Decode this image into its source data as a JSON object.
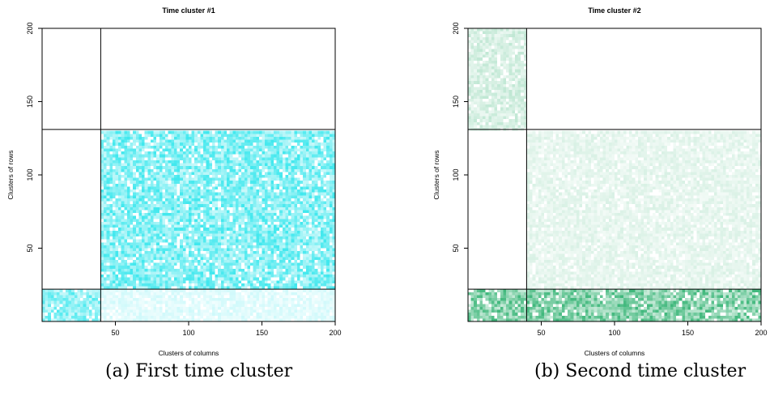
{
  "figure": {
    "captions": [
      "(a) First time cluster",
      "(b) Second time cluster"
    ]
  },
  "chart_data": [
    {
      "type": "heatmap",
      "title": "Time cluster #1",
      "xlabel": "Clusters of columns",
      "ylabel": "Clusters of rows",
      "xlim": [
        0,
        200
      ],
      "ylim": [
        0,
        200
      ],
      "x_ticks": [
        50,
        100,
        150,
        200
      ],
      "y_ticks": [
        50,
        100,
        150,
        200
      ],
      "column_cluster_boundaries": [
        40
      ],
      "row_cluster_boundaries": [
        22,
        131
      ],
      "color": "#00e0e8",
      "blocks": [
        {
          "x": [
            0,
            40
          ],
          "y": [
            0,
            22
          ],
          "intensity": 0.55
        },
        {
          "x": [
            40,
            200
          ],
          "y": [
            0,
            22
          ],
          "intensity": 0.15
        },
        {
          "x": [
            0,
            40
          ],
          "y": [
            22,
            131
          ],
          "intensity": 0.0
        },
        {
          "x": [
            40,
            200
          ],
          "y": [
            22,
            131
          ],
          "intensity": 0.6
        },
        {
          "x": [
            0,
            40
          ],
          "y": [
            131,
            200
          ],
          "intensity": 0.0
        },
        {
          "x": [
            40,
            200
          ],
          "y": [
            131,
            200
          ],
          "intensity": 0.0
        }
      ]
    },
    {
      "type": "heatmap",
      "title": "Time cluster #2",
      "xlabel": "Clusters of columns",
      "ylabel": "Clusters of rows",
      "xlim": [
        0,
        200
      ],
      "ylim": [
        0,
        200
      ],
      "x_ticks": [
        50,
        100,
        150,
        200
      ],
      "y_ticks": [
        50,
        100,
        150,
        200
      ],
      "column_cluster_boundaries": [
        40
      ],
      "row_cluster_boundaries": [
        22,
        131
      ],
      "color": "#00a050",
      "blocks": [
        {
          "x": [
            0,
            40
          ],
          "y": [
            0,
            22
          ],
          "intensity": 0.6
        },
        {
          "x": [
            40,
            200
          ],
          "y": [
            0,
            22
          ],
          "intensity": 0.6
        },
        {
          "x": [
            0,
            40
          ],
          "y": [
            22,
            131
          ],
          "intensity": 0.0
        },
        {
          "x": [
            40,
            200
          ],
          "y": [
            22,
            131
          ],
          "intensity": 0.12
        },
        {
          "x": [
            0,
            40
          ],
          "y": [
            131,
            200
          ],
          "intensity": 0.2
        },
        {
          "x": [
            40,
            200
          ],
          "y": [
            131,
            200
          ],
          "intensity": 0.0
        }
      ]
    }
  ]
}
